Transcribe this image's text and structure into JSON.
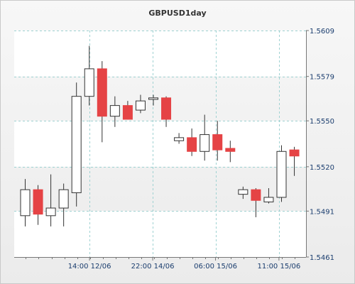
{
  "chart_data": {
    "type": "candlestick",
    "title": "GBPUSD1day",
    "ylim": [
      1.5461,
      1.5609
    ],
    "y_ticks": [
      "1.5609",
      "1.5579",
      "1.5550",
      "1.5520",
      "1.5491",
      "1.5461"
    ],
    "y_tick_values": [
      1.5609,
      1.5579,
      1.555,
      1.552,
      1.5491,
      1.5461
    ],
    "x_ticks": [
      "14:00 12/06",
      "22:00 14/06",
      "06:00 15/06",
      "11:00 15/06"
    ],
    "x_tick_slots": [
      5.02,
      9.95,
      14.85,
      19.8
    ],
    "grid": true,
    "colors": {
      "up_fill": "#ffffff",
      "down_fill": "#e54345",
      "wick": "#333333",
      "grid": "#9fd2d2",
      "band": "#ffffff",
      "axis_text": "#1a3d6e"
    },
    "candles": [
      {
        "slot": 0,
        "open": 1.5488,
        "high": 1.5512,
        "low": 1.5481,
        "close": 1.5505
      },
      {
        "slot": 1,
        "open": 1.5505,
        "high": 1.5508,
        "low": 1.5482,
        "close": 1.5489
      },
      {
        "slot": 2,
        "open": 1.5488,
        "high": 1.5515,
        "low": 1.5481,
        "close": 1.5493
      },
      {
        "slot": 3,
        "open": 1.5493,
        "high": 1.5509,
        "low": 1.5481,
        "close": 1.5505
      },
      {
        "slot": 4,
        "open": 1.5503,
        "high": 1.5575,
        "low": 1.5494,
        "close": 1.5566
      },
      {
        "slot": 5,
        "open": 1.5566,
        "high": 1.5599,
        "low": 1.556,
        "close": 1.5584
      },
      {
        "slot": 6,
        "open": 1.5584,
        "high": 1.5589,
        "low": 1.5536,
        "close": 1.5553
      },
      {
        "slot": 7,
        "open": 1.5553,
        "high": 1.5566,
        "low": 1.5546,
        "close": 1.556
      },
      {
        "slot": 8,
        "open": 1.556,
        "high": 1.5563,
        "low": 1.5552,
        "close": 1.5551
      },
      {
        "slot": 9,
        "open": 1.5557,
        "high": 1.5567,
        "low": 1.5555,
        "close": 1.5563
      },
      {
        "slot": 10,
        "open": 1.5564,
        "high": 1.5567,
        "low": 1.556,
        "close": 1.5565
      },
      {
        "slot": 11,
        "open": 1.5565,
        "high": 1.5566,
        "low": 1.5546,
        "close": 1.5551
      },
      {
        "slot": 12,
        "open": 1.5537,
        "high": 1.5542,
        "low": 1.5535,
        "close": 1.5539
      },
      {
        "slot": 13,
        "open": 1.5539,
        "high": 1.5545,
        "low": 1.5527,
        "close": 1.553
      },
      {
        "slot": 14,
        "open": 1.553,
        "high": 1.5554,
        "low": 1.5524,
        "close": 1.5541
      },
      {
        "slot": 15,
        "open": 1.5541,
        "high": 1.555,
        "low": 1.5524,
        "close": 1.5531
      },
      {
        "slot": 16,
        "open": 1.5532,
        "high": 1.5537,
        "low": 1.5523,
        "close": 1.553
      },
      {
        "slot": 17,
        "open": 1.5502,
        "high": 1.5507,
        "low": 1.5499,
        "close": 1.5505
      },
      {
        "slot": 18,
        "open": 1.5505,
        "high": 1.5506,
        "low": 1.5487,
        "close": 1.5498
      },
      {
        "slot": 19,
        "open": 1.5497,
        "high": 1.5506,
        "low": 1.5496,
        "close": 1.55
      },
      {
        "slot": 20,
        "open": 1.55,
        "high": 1.5534,
        "low": 1.5497,
        "close": 1.553
      },
      {
        "slot": 21,
        "open": 1.5531,
        "high": 1.5533,
        "low": 1.5514,
        "close": 1.5527
      }
    ]
  }
}
